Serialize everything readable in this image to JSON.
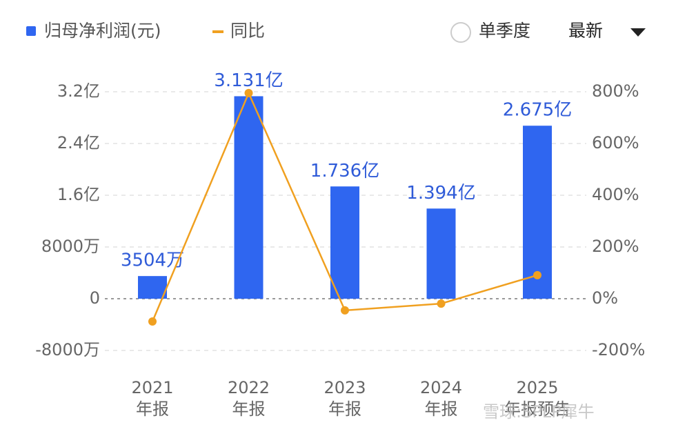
{
  "chart_data": {
    "type": "bar_line",
    "categories": [
      "2021",
      "2022",
      "2023",
      "2024",
      "2025"
    ],
    "category_sublabels": [
      "年报",
      "年报",
      "年报",
      "年报",
      "年报预告"
    ],
    "series": [
      {
        "name": "归母净利润(元)",
        "type": "bar",
        "color": "#2f66f0",
        "values": [
          35040000,
          313100000,
          173600000,
          139400000,
          267500000
        ],
        "value_labels": [
          "3504万",
          "3.131亿",
          "1.736亿",
          "1.394亿",
          "2.675亿"
        ]
      },
      {
        "name": "同比",
        "type": "line",
        "axis": "y2",
        "color": "#f0a020",
        "values": [
          -88,
          795,
          -45,
          -19,
          91
        ]
      }
    ],
    "ylim": [
      -80000000,
      320000000
    ],
    "yticks": [
      {
        "value": -80000000,
        "label": "-8000万"
      },
      0,
      {
        "value": 80000000,
        "label": "8000万"
      },
      {
        "value": 160000000,
        "label": "1.6亿"
      },
      {
        "value": 240000000,
        "label": "2.4亿"
      },
      {
        "value": 320000000,
        "label": "3.2亿"
      }
    ],
    "y2lim": [
      -200,
      800
    ],
    "y2ticks": [
      {
        "value": -200,
        "label": "-200%"
      },
      {
        "value": 0,
        "label": "0%"
      },
      {
        "value": 200,
        "label": "200%"
      },
      {
        "value": 400,
        "label": "400%"
      },
      {
        "value": 600,
        "label": "600%"
      },
      {
        "value": 800,
        "label": "800%"
      }
    ],
    "grid": true,
    "controls": {
      "toggle": "单季度",
      "dropdown": "最新"
    },
    "watermark": "雪球:SPLP犀牛"
  }
}
